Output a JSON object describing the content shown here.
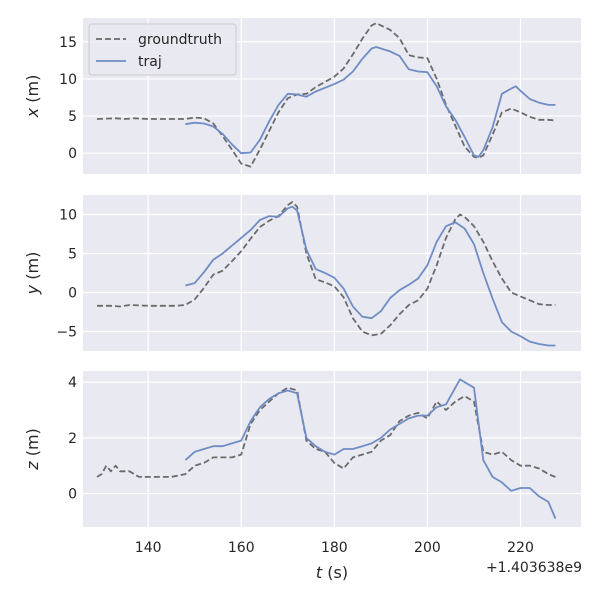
{
  "chart_data": {
    "type": "line",
    "colors": {
      "groundtruth": "#6b6b6b",
      "traj": "#6f8dc4",
      "panel_bg": "#e9e9f1",
      "grid": "#ffffff"
    },
    "shared_x": {
      "label": "t (s)",
      "ticks": [
        140,
        160,
        180,
        200,
        220
      ],
      "tick_labels": [
        "140",
        "160",
        "180",
        "200",
        "220"
      ],
      "offset_label": "+1.403638e9",
      "xlim": [
        126,
        233
      ]
    },
    "legend": {
      "placement": "top-left",
      "entries": [
        "groundtruth",
        "traj"
      ]
    },
    "panels": [
      {
        "ylabel": "x (m)",
        "ylabel_var": "x",
        "ylabel_unit": " (m)",
        "ylim": [
          -2.8,
          18.2
        ],
        "yticks": [
          0,
          5,
          10,
          15
        ],
        "ytick_labels": [
          "0",
          "5",
          "10",
          "15"
        ],
        "series": [
          {
            "name": "groundtruth",
            "style": "dashed",
            "x": [
              129,
              133,
              135,
              137,
              140,
              145,
              148,
              150,
              152,
              154,
              156,
              158,
              160,
              162,
              164,
              166,
              168,
              170,
              172,
              174,
              176,
              178,
              180,
              182,
              184,
              186,
              188,
              189,
              190,
              192,
              194,
              196,
              198,
              200,
              202,
              204,
              206,
              208,
              210,
              211,
              212,
              214,
              216,
              218,
              220,
              222,
              224,
              226,
              227.5
            ],
            "y": [
              4.6,
              4.7,
              4.6,
              4.7,
              4.6,
              4.6,
              4.6,
              4.8,
              4.7,
              4.0,
              2.3,
              0.5,
              -1.4,
              -1.8,
              0.5,
              3.0,
              5.5,
              7.4,
              7.9,
              8.0,
              8.9,
              9.6,
              10.3,
              11.4,
              13.3,
              15.4,
              17.2,
              17.5,
              17.2,
              16.6,
              15.5,
              13.2,
              12.9,
              12.8,
              10.0,
              6.5,
              3.7,
              0.9,
              -0.5,
              -0.6,
              -0.3,
              2.5,
              5.5,
              6.0,
              5.5,
              4.9,
              4.5,
              4.5,
              4.4
            ]
          },
          {
            "name": "traj",
            "style": "solid",
            "x": [
              148,
              150,
              152,
              154,
              156,
              158,
              160,
              162,
              164,
              166,
              168,
              170,
              172,
              174,
              176,
              178,
              180,
              182,
              184,
              186,
              188,
              189,
              190,
              192,
              194,
              196,
              198,
              200,
              202,
              204,
              206,
              208,
              210,
              211,
              212,
              214,
              216,
              218,
              219,
              220,
              222,
              224,
              226,
              227.5
            ],
            "y": [
              3.9,
              4.1,
              4.0,
              3.6,
              2.6,
              1.2,
              0.0,
              0.1,
              1.8,
              4.3,
              6.5,
              8.0,
              7.9,
              7.6,
              8.3,
              8.8,
              9.3,
              9.9,
              11.0,
              12.7,
              14.1,
              14.3,
              14.1,
              13.7,
              13.1,
              11.3,
              11.0,
              10.9,
              9.0,
              6.3,
              4.5,
              2.2,
              -0.3,
              -0.5,
              0.4,
              3.5,
              8.0,
              8.7,
              9.0,
              8.4,
              7.3,
              6.8,
              6.5,
              6.5
            ]
          }
        ]
      },
      {
        "ylabel": "y (m)",
        "ylabel_var": "y",
        "ylabel_unit": " (m)",
        "ylim": [
          -7.5,
          12.5
        ],
        "yticks": [
          -5,
          0,
          5,
          10
        ],
        "ytick_labels": [
          "−5",
          "0",
          "5",
          "10"
        ],
        "series": [
          {
            "name": "groundtruth",
            "style": "dashed",
            "x": [
              129,
              132,
              134,
              136,
              140,
              146,
              148,
              150,
              152,
              154,
              156,
              158,
              160,
              162,
              164,
              166,
              168,
              170,
              171,
              172,
              174,
              176,
              178,
              180,
              182,
              184,
              186,
              188,
              190,
              192,
              194,
              196,
              198,
              200,
              202,
              204,
              206,
              207,
              208,
              210,
              212,
              214,
              216,
              218,
              220,
              222,
              224,
              226,
              227.5
            ],
            "y": [
              -1.7,
              -1.7,
              -1.8,
              -1.6,
              -1.7,
              -1.7,
              -1.6,
              -0.9,
              0.6,
              2.3,
              2.8,
              4.0,
              5.3,
              6.9,
              8.4,
              9.2,
              9.8,
              11.2,
              11.6,
              11.0,
              5.0,
              1.7,
              1.3,
              0.8,
              -0.6,
              -3.3,
              -5.0,
              -5.5,
              -5.3,
              -4.2,
              -2.8,
              -1.6,
              -1.0,
              0.5,
              3.5,
              7.0,
              9.4,
              10.0,
              9.7,
              8.5,
              6.5,
              4.0,
              1.8,
              0.0,
              -0.5,
              -1.0,
              -1.5,
              -1.6,
              -1.6
            ]
          },
          {
            "name": "traj",
            "style": "solid",
            "x": [
              148,
              150,
              152,
              154,
              156,
              158,
              160,
              162,
              164,
              166,
              168,
              170,
              171,
              172,
              174,
              176,
              178,
              180,
              182,
              184,
              186,
              188,
              190,
              192,
              194,
              196,
              198,
              200,
              202,
              204,
              206,
              208,
              210,
              212,
              214,
              216,
              218,
              220,
              222,
              224,
              226,
              227.5
            ],
            "y": [
              0.9,
              1.2,
              2.6,
              4.2,
              5.0,
              6.0,
              7.0,
              8.0,
              9.3,
              9.8,
              9.7,
              10.8,
              11.0,
              10.5,
              5.5,
              3.0,
              2.5,
              1.9,
              0.5,
              -1.8,
              -3.1,
              -3.3,
              -2.4,
              -0.7,
              0.3,
              1.0,
              1.8,
              3.5,
              6.5,
              8.5,
              9.0,
              8.2,
              6.2,
              2.5,
              -0.8,
              -3.8,
              -5.0,
              -5.6,
              -6.3,
              -6.6,
              -6.8,
              -6.8
            ]
          }
        ]
      },
      {
        "ylabel": "z (m)",
        "ylabel_var": "z",
        "ylabel_unit": " (m)",
        "ylim": [
          -1.2,
          4.4
        ],
        "yticks": [
          0,
          2,
          4
        ],
        "ytick_labels": [
          "0",
          "2",
          "4"
        ],
        "series": [
          {
            "name": "groundtruth",
            "style": "dashed",
            "x": [
              129,
              130,
              131,
              132,
              133,
              134,
              136,
              138,
              140,
              145,
              148,
              150,
              152,
              154,
              156,
              158,
              160,
              162,
              164,
              166,
              168,
              170,
              172,
              174,
              176,
              178,
              180,
              182,
              184,
              186,
              188,
              190,
              192,
              194,
              196,
              198,
              200,
              202,
              204,
              206,
              208,
              210,
              212,
              214,
              216,
              218,
              220,
              222,
              224,
              226,
              227.5
            ],
            "y": [
              0.6,
              0.7,
              1.0,
              0.8,
              1.0,
              0.8,
              0.8,
              0.6,
              0.6,
              0.6,
              0.7,
              1.0,
              1.1,
              1.3,
              1.3,
              1.3,
              1.4,
              2.5,
              3.0,
              3.3,
              3.6,
              3.8,
              3.7,
              1.9,
              1.6,
              1.5,
              1.1,
              0.9,
              1.3,
              1.4,
              1.5,
              1.9,
              2.1,
              2.6,
              2.8,
              2.9,
              2.7,
              3.3,
              3.0,
              3.3,
              3.5,
              3.3,
              1.5,
              1.4,
              1.5,
              1.2,
              1.0,
              1.0,
              0.9,
              0.7,
              0.6
            ]
          },
          {
            "name": "traj",
            "style": "solid",
            "x": [
              148,
              150,
              152,
              154,
              156,
              158,
              160,
              162,
              164,
              166,
              168,
              170,
              172,
              174,
              176,
              178,
              180,
              182,
              184,
              186,
              188,
              190,
              192,
              194,
              196,
              198,
              200,
              202,
              204,
              206,
              207,
              208,
              210,
              212,
              214,
              216,
              218,
              220,
              222,
              224,
              226,
              227.5
            ],
            "y": [
              1.2,
              1.5,
              1.6,
              1.7,
              1.7,
              1.8,
              1.9,
              2.6,
              3.1,
              3.4,
              3.6,
              3.7,
              3.6,
              2.0,
              1.7,
              1.5,
              1.4,
              1.6,
              1.6,
              1.7,
              1.8,
              2.0,
              2.3,
              2.5,
              2.7,
              2.8,
              2.8,
              3.1,
              3.2,
              3.8,
              4.1,
              4.0,
              3.8,
              1.2,
              0.6,
              0.4,
              0.1,
              0.2,
              0.2,
              -0.1,
              -0.3,
              -0.9
            ]
          }
        ]
      }
    ]
  }
}
